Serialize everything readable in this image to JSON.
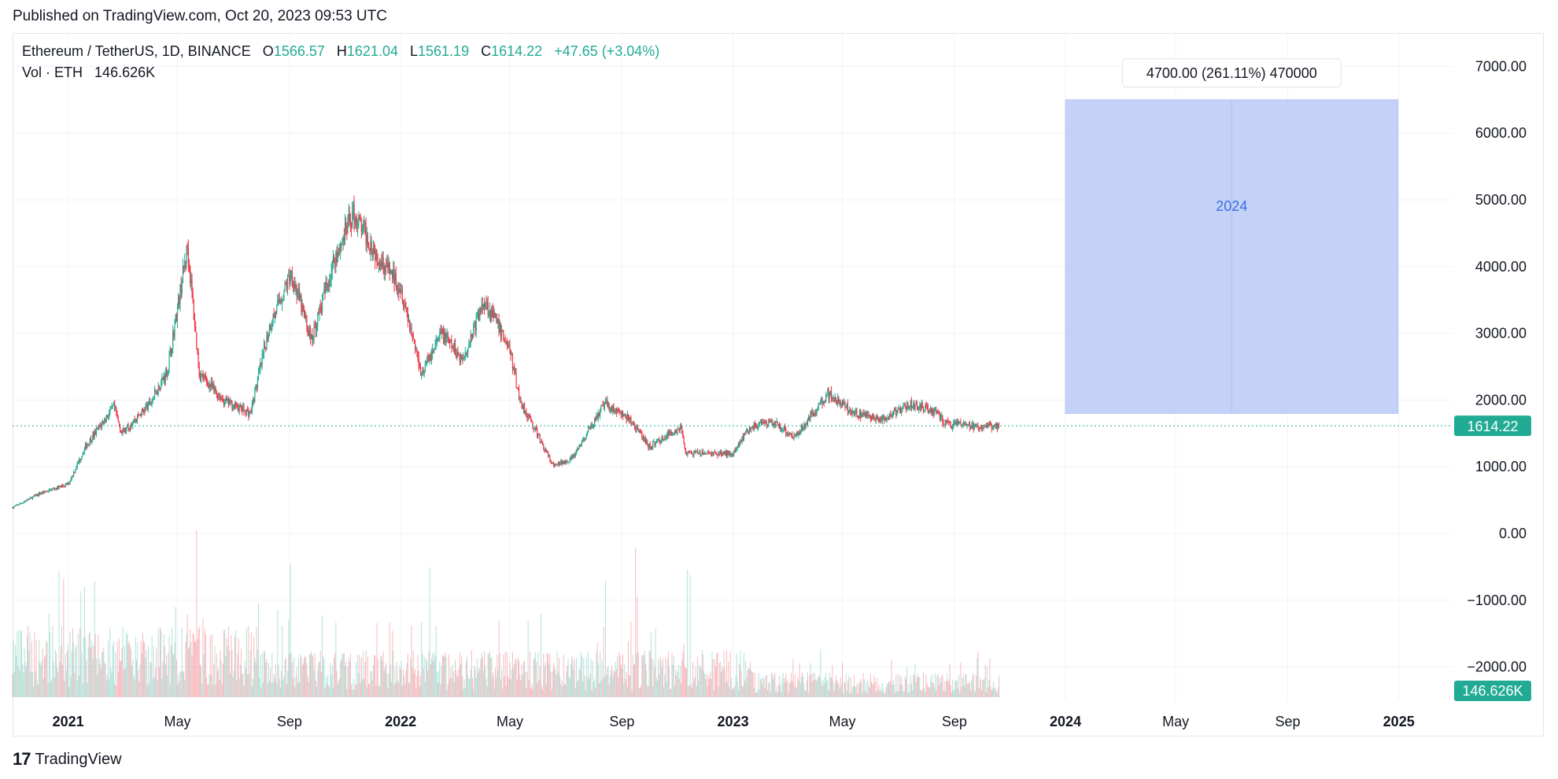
{
  "header": {
    "published": "Published on TradingView.com, Oct 20, 2023 09:53 UTC"
  },
  "legend": {
    "symbol": "Ethereum / TetherUS, 1D, BINANCE",
    "o_label": "O",
    "o": "1566.57",
    "h_label": "H",
    "h": "1621.04",
    "l_label": "L",
    "l": "1561.19",
    "c_label": "C",
    "c": "1614.22",
    "change": "+47.65 (+3.04%)",
    "vol_label": "Vol · ETH",
    "vol_value": "146.626K"
  },
  "footer": {
    "brand": "TradingView",
    "logo_text": "17"
  },
  "colors": {
    "up": "#22ab94",
    "down": "#f23645",
    "projection": "#bccbf7",
    "projection_label": "#3d6be0",
    "price_line": "#22ab94"
  },
  "chart_data": {
    "type": "candlestick",
    "y_ticks": [
      "7000.00",
      "6000.00",
      "5000.00",
      "4000.00",
      "3000.00",
      "2000.00",
      "1000.00",
      "0.00",
      "−1000.00",
      "−2000.00"
    ],
    "y_tick_values": [
      7000,
      6000,
      5000,
      4000,
      3000,
      2000,
      1000,
      0,
      -1000,
      -2000
    ],
    "ylim": [
      -2500,
      7500
    ],
    "x_ticks": [
      {
        "label": "2021",
        "date": "2021-01-01",
        "bold": true
      },
      {
        "label": "May",
        "date": "2021-05-01",
        "bold": false
      },
      {
        "label": "Sep",
        "date": "2021-09-01",
        "bold": false
      },
      {
        "label": "2022",
        "date": "2022-01-01",
        "bold": true
      },
      {
        "label": "May",
        "date": "2022-05-01",
        "bold": false
      },
      {
        "label": "Sep",
        "date": "2022-09-01",
        "bold": false
      },
      {
        "label": "2023",
        "date": "2023-01-01",
        "bold": true
      },
      {
        "label": "May",
        "date": "2023-05-01",
        "bold": false
      },
      {
        "label": "Sep",
        "date": "2023-09-01",
        "bold": false
      },
      {
        "label": "2024",
        "date": "2024-01-01",
        "bold": true
      },
      {
        "label": "May",
        "date": "2024-05-01",
        "bold": false
      },
      {
        "label": "Sep",
        "date": "2024-09-01",
        "bold": false
      },
      {
        "label": "2025",
        "date": "2025-01-01",
        "bold": true
      }
    ],
    "xlim": [
      "2020-11-01",
      "2025-03-01"
    ],
    "price_path": [
      [
        "2020-11-01",
        390
      ],
      [
        "2020-12-01",
        600
      ],
      [
        "2021-01-01",
        740
      ],
      [
        "2021-01-20",
        1300
      ],
      [
        "2021-02-20",
        1900
      ],
      [
        "2021-03-01",
        1500
      ],
      [
        "2021-04-01",
        1950
      ],
      [
        "2021-04-20",
        2450
      ],
      [
        "2021-05-12",
        4300
      ],
      [
        "2021-05-25",
        2400
      ],
      [
        "2021-06-20",
        2000
      ],
      [
        "2021-07-20",
        1800
      ],
      [
        "2021-08-10",
        3100
      ],
      [
        "2021-09-03",
        3900
      ],
      [
        "2021-09-25",
        2900
      ],
      [
        "2021-10-20",
        4100
      ],
      [
        "2021-11-10",
        4800
      ],
      [
        "2021-12-05",
        4200
      ],
      [
        "2022-01-01",
        3700
      ],
      [
        "2022-01-24",
        2400
      ],
      [
        "2022-02-15",
        3000
      ],
      [
        "2022-03-10",
        2600
      ],
      [
        "2022-04-03",
        3500
      ],
      [
        "2022-04-30",
        2800
      ],
      [
        "2022-05-12",
        2000
      ],
      [
        "2022-06-18",
        1000
      ],
      [
        "2022-07-10",
        1150
      ],
      [
        "2022-08-13",
        1950
      ],
      [
        "2022-09-10",
        1700
      ],
      [
        "2022-10-01",
        1300
      ],
      [
        "2022-11-05",
        1600
      ],
      [
        "2022-11-10",
        1200
      ],
      [
        "2022-12-31",
        1200
      ],
      [
        "2023-01-20",
        1600
      ],
      [
        "2023-02-15",
        1650
      ],
      [
        "2023-03-10",
        1450
      ],
      [
        "2023-04-15",
        2100
      ],
      [
        "2023-05-15",
        1800
      ],
      [
        "2023-06-15",
        1700
      ],
      [
        "2023-07-15",
        1950
      ],
      [
        "2023-08-15",
        1800
      ],
      [
        "2023-08-20",
        1650
      ],
      [
        "2023-09-20",
        1600
      ],
      [
        "2023-10-20",
        1614
      ]
    ],
    "volume_max_label": "146.626K",
    "current_price": 1614.22,
    "current_price_label": "1614.22",
    "projection": {
      "x_start": "2024-01-01",
      "x_end": "2024-12-31",
      "y_low": 1800,
      "y_high": 6500,
      "label": "2024",
      "measure_label": "4700.00 (261.11%) 470000"
    }
  }
}
